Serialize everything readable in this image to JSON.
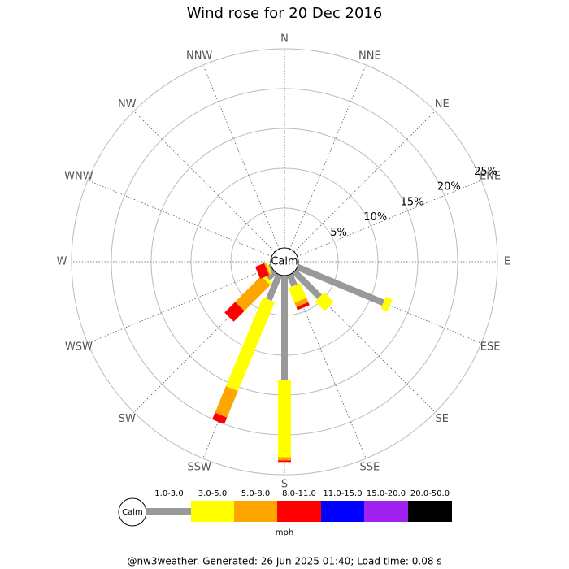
{
  "chart_data": {
    "type": "windrose",
    "title": "Wind rose for 20 Dec 2016",
    "calm_label": "Calm",
    "legend_unit": "mph",
    "footer": "@nw3weather. Generated: 26 Jun 2025 01:40; Load time: 0.08 s",
    "categories": [
      "N",
      "NNE",
      "NE",
      "ENE",
      "E",
      "ESE",
      "SE",
      "SSE",
      "S",
      "SSW",
      "SW",
      "WSW",
      "W",
      "WNW",
      "NW",
      "NNW"
    ],
    "rlim": [
      0,
      25
    ],
    "rticks": [
      {
        "value": 5,
        "label": "5%"
      },
      {
        "value": 10,
        "label": "10%"
      },
      {
        "value": 15,
        "label": "15%"
      },
      {
        "value": 20,
        "label": "20%"
      },
      {
        "value": 25,
        "label": "25%"
      }
    ],
    "series": [
      {
        "name": "1.0-3.0",
        "color": "#999999",
        "values": [
          0,
          0,
          0,
          0,
          0,
          11.7,
          4.5,
          1.5,
          13.1,
          3.4,
          1.2,
          0.3,
          0,
          0,
          0,
          0
        ]
      },
      {
        "name": "3.0-5.0",
        "color": "#ffff00",
        "values": [
          0,
          0,
          0,
          0,
          0,
          0.9,
          1.7,
          2.0,
          9.7,
          12.1,
          0.4,
          0.2,
          0,
          0,
          0,
          0
        ]
      },
      {
        "name": "5.0-8.0",
        "color": "#ffa500",
        "values": [
          0,
          0,
          0,
          0,
          0,
          0,
          0,
          0.6,
          0.4,
          3.6,
          4.6,
          0.2,
          0,
          0,
          0,
          0
        ]
      },
      {
        "name": "8.0-11.0",
        "color": "#ff0000",
        "values": [
          0,
          0,
          0,
          0,
          0,
          0,
          0,
          0.4,
          0.2,
          0.9,
          1.9,
          1.2,
          0,
          0,
          0,
          0
        ]
      },
      {
        "name": "11.0-15.0",
        "color": "#0000ff",
        "values": [
          0,
          0,
          0,
          0,
          0,
          0,
          0,
          0,
          0,
          0,
          0,
          0,
          0,
          0,
          0,
          0
        ]
      },
      {
        "name": "15.0-20.0",
        "color": "#a020f0",
        "values": [
          0,
          0,
          0,
          0,
          0,
          0,
          0,
          0,
          0,
          0,
          0,
          0,
          0,
          0,
          0,
          0
        ]
      },
      {
        "name": "20.0-50.0",
        "color": "#000000",
        "values": [
          0,
          0,
          0,
          0,
          0,
          0,
          0,
          0,
          0,
          0,
          0,
          0,
          0,
          0,
          0,
          0
        ]
      }
    ]
  }
}
